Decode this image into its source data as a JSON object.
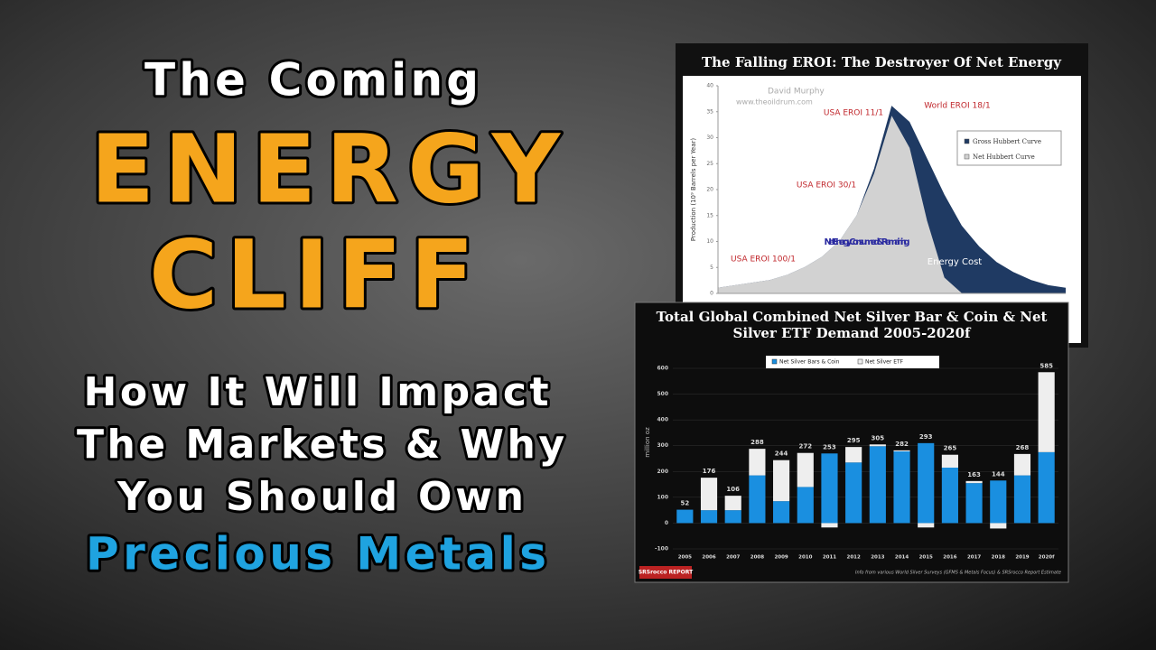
{
  "headline": {
    "line1": "The Coming",
    "line2": "ENERGY",
    "line3": "CLIFF",
    "line4": "How It Will Impact",
    "line5": "The Markets & Why",
    "line6": "You Should Own",
    "line7": "Precious Metals"
  },
  "chart_data": [
    {
      "type": "area",
      "title": "The Falling EROI:  The Destroyer Of Net Energy",
      "y_label": "Production (10⁹ Barrels per Year)",
      "annotations": [
        "David Murphy",
        "www.theoildrum.com",
        "USA EROI 11/1",
        "World EROI 18/1",
        "USA EROI 30/1",
        "USA EROI 100/1",
        "Net Energy Consumed & Remaining",
        "Energy Cost"
      ],
      "categories": [
        null,
        null,
        null,
        null,
        null,
        null,
        null,
        null,
        null,
        null,
        null,
        null,
        null,
        null,
        null,
        null,
        null,
        null,
        null,
        null,
        null
      ],
      "series": [
        {
          "name": "Gross Hubbert Curve",
          "color": "#1f3a63",
          "values": [
            1,
            1.5,
            2,
            2.5,
            3.5,
            5,
            7,
            10,
            15,
            24,
            36,
            33,
            26,
            19,
            13,
            9,
            6,
            4,
            2.5,
            1.5,
            1
          ]
        },
        {
          "name": "Net Hubbert Curve",
          "color": "#d2d2d2",
          "values": [
            1,
            1.5,
            2,
            2.5,
            3.5,
            5,
            7,
            10,
            15,
            23,
            34,
            28,
            14,
            3,
            0,
            0,
            0,
            0,
            0,
            0,
            0
          ]
        }
      ],
      "ylim": [
        0,
        40
      ],
      "yticks": [
        0,
        5,
        10,
        15,
        20,
        25,
        30,
        35,
        40
      ]
    },
    {
      "type": "stacked-bar",
      "title": "Total Global Combined Net Silver Bar & Coin & Net Silver ETF Demand 2005-2020f",
      "y_label": "million oz",
      "categories": [
        "2005",
        "2006",
        "2007",
        "2008",
        "2009",
        "2010",
        "2011",
        "2012",
        "2013",
        "2014",
        "2015",
        "2016",
        "2017",
        "2018",
        "2019",
        "2020f"
      ],
      "series": [
        {
          "name": "Net Silver Bars & Coin",
          "color": "#1a8fe0",
          "values": [
            52,
            50,
            50,
            185,
            85,
            140,
            270,
            235,
            298,
            278,
            310,
            215,
            155,
            165,
            185,
            275
          ]
        },
        {
          "name": "Net Silver ETF",
          "color": "#eeeeee",
          "values": [
            0,
            126,
            56,
            103,
            159,
            132,
            -17,
            60,
            7,
            4,
            -17,
            50,
            8,
            -21,
            83,
            310
          ]
        }
      ],
      "totals": [
        52,
        176,
        106,
        288,
        244,
        272,
        253,
        295,
        305,
        282,
        293,
        265,
        163,
        144,
        268,
        585
      ],
      "ylim": [
        -100,
        600
      ],
      "yticks": [
        -100,
        0,
        100,
        200,
        300,
        400,
        500,
        600
      ],
      "source": "Info from various World Silver Surveys (GFMS & Metals Focus) & SRSrocco Report Estimate",
      "logo": "SRSrocco REPORT"
    }
  ]
}
